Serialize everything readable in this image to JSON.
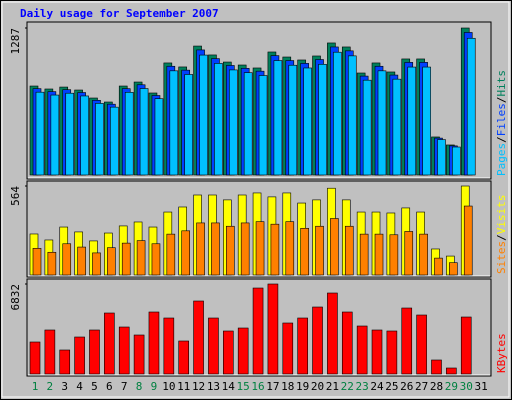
{
  "title": "Daily usage for September 2007",
  "separator": "/",
  "categories": [
    "1",
    "2",
    "3",
    "4",
    "5",
    "6",
    "7",
    "8",
    "9",
    "10",
    "11",
    "12",
    "13",
    "14",
    "15",
    "16",
    "17",
    "18",
    "19",
    "20",
    "21",
    "22",
    "23",
    "24",
    "25",
    "26",
    "27",
    "28",
    "29",
    "30",
    "31"
  ],
  "category_colors": [
    "#008040",
    "#008040",
    "#000000",
    "#000000",
    "#000000",
    "#000000",
    "#000000",
    "#008040",
    "#008040",
    "#000000",
    "#000000",
    "#000000",
    "#000000",
    "#000000",
    "#008040",
    "#008040",
    "#000000",
    "#000000",
    "#000000",
    "#000000",
    "#000000",
    "#008040",
    "#008040",
    "#000000",
    "#000000",
    "#000000",
    "#000000",
    "#000000",
    "#008040",
    "#008040",
    "#000000"
  ],
  "chart_data": [
    {
      "type": "bar",
      "ylim": [
        0,
        1287
      ],
      "yticks": [
        1287
      ],
      "series": [
        {
          "name": "Hits",
          "color": "#00805c",
          "values": [
            779,
            753,
            770,
            744,
            674,
            639,
            779,
            814,
            718,
            981,
            946,
            1129,
            1051,
            989,
            963,
            937,
            1077,
            1033,
            1007,
            1042,
            1156,
            1121,
            893,
            981,
            902,
            1016,
            1016,
            333,
            263,
            1287,
            0
          ]
        },
        {
          "name": "Files",
          "color": "#0040ff",
          "values": [
            756,
            730,
            747,
            722,
            654,
            620,
            756,
            790,
            696,
            952,
            918,
            1095,
            1019,
            959,
            934,
            909,
            1045,
            1002,
            977,
            1011,
            1121,
            1087,
            866,
            952,
            875,
            986,
            986,
            323,
            255,
            1248,
            0
          ]
        },
        {
          "name": "Pages",
          "color": "#00c0ff",
          "values": [
            725,
            700,
            716,
            692,
            627,
            594,
            724,
            757,
            668,
            912,
            880,
            1050,
            977,
            920,
            896,
            871,
            1002,
            961,
            937,
            969,
            1075,
            1043,
            830,
            912,
            839,
            945,
            945,
            310,
            245,
            1197,
            0
          ]
        }
      ]
    },
    {
      "type": "bar",
      "ylim": [
        0,
        564
      ],
      "yticks": [
        564
      ],
      "series": [
        {
          "name": "Visits",
          "color": "#ffff00",
          "values": [
            260,
            222,
            304,
            273,
            216,
            266,
            311,
            336,
            304,
            399,
            431,
            507,
            507,
            476,
            507,
            520,
            495,
            520,
            456,
            476,
            550,
            476,
            399,
            399,
            393,
            425,
            399,
            165,
            120,
            564,
            0
          ]
        },
        {
          "name": "Sites",
          "color": "#ff8000",
          "values": [
            169,
            144,
            198,
            177,
            140,
            173,
            202,
            218,
            198,
            259,
            280,
            330,
            330,
            309,
            330,
            338,
            322,
            338,
            296,
            309,
            358,
            309,
            259,
            259,
            255,
            276,
            259,
            107,
            78,
            437,
            0
          ]
        }
      ]
    },
    {
      "type": "bar",
      "ylim": [
        0,
        6832
      ],
      "yticks": [
        6832
      ],
      "series": [
        {
          "name": "KBytes",
          "color": "#ff0000",
          "values": [
            2429,
            3340,
            1822,
            2808,
            3340,
            4630,
            3567,
            2960,
            4706,
            4250,
            2505,
            5541,
            4250,
            3264,
            3491,
            6527,
            6832,
            3871,
            4250,
            5085,
            6148,
            4706,
            3643,
            3340,
            3264,
            5009,
            4478,
            1063,
            455,
            4326,
            0
          ]
        }
      ]
    }
  ]
}
